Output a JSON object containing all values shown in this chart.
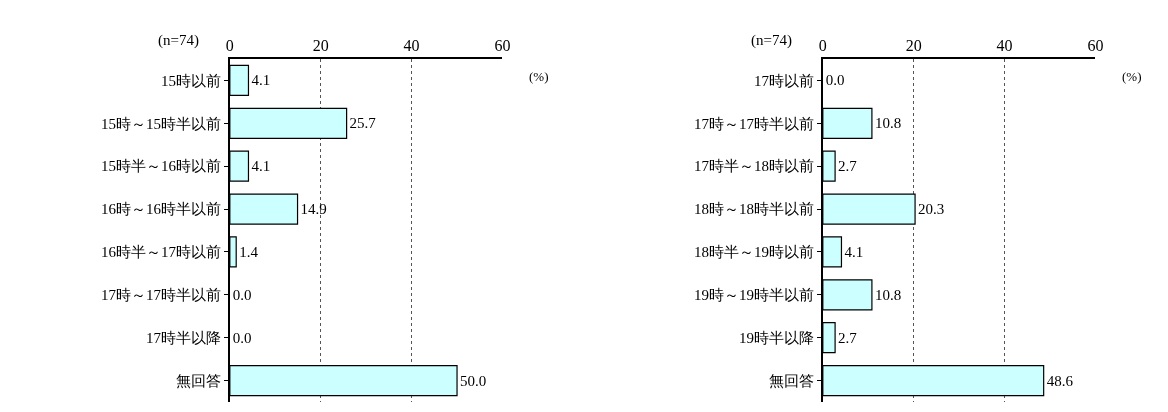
{
  "chart_data": [
    {
      "type": "bar",
      "orientation": "horizontal",
      "categories": [
        "15時以前",
        "15時～15時半以前",
        "15時半～16時以前",
        "16時～16時半以前",
        "16時半～17時以前",
        "17時～17時半以前",
        "17時半以降",
        "無回答"
      ],
      "values": [
        4.1,
        25.7,
        4.1,
        14.9,
        1.4,
        0.0,
        0.0,
        50.0
      ],
      "value_labels": [
        "4.1",
        "25.7",
        "4.1",
        "14.9",
        "1.4",
        "0.0",
        "0.0",
        "50.0"
      ],
      "color": "#ccffff",
      "xlim": [
        0,
        60
      ],
      "xticks": [
        0,
        20,
        40,
        60
      ],
      "grid": "x",
      "annotations": [
        "(n=74)",
        "(%)"
      ]
    },
    {
      "type": "bar",
      "orientation": "horizontal",
      "categories": [
        "17時以前",
        "17時～17時半以前",
        "17時半～18時以前",
        "18時～18時半以前",
        "18時半～19時以前",
        "19時～19時半以前",
        "19時半以降",
        "無回答"
      ],
      "values": [
        0.0,
        10.8,
        2.7,
        20.3,
        4.1,
        10.8,
        2.7,
        48.6
      ],
      "value_labels": [
        "0.0",
        "10.8",
        "2.7",
        "20.3",
        "4.1",
        "10.8",
        "2.7",
        "48.6"
      ],
      "color": "#ccffff",
      "xlim": [
        0,
        60
      ],
      "xticks": [
        0,
        20,
        40,
        60
      ],
      "grid": "x",
      "annotations": [
        "(n=74)",
        "(%)"
      ]
    }
  ]
}
